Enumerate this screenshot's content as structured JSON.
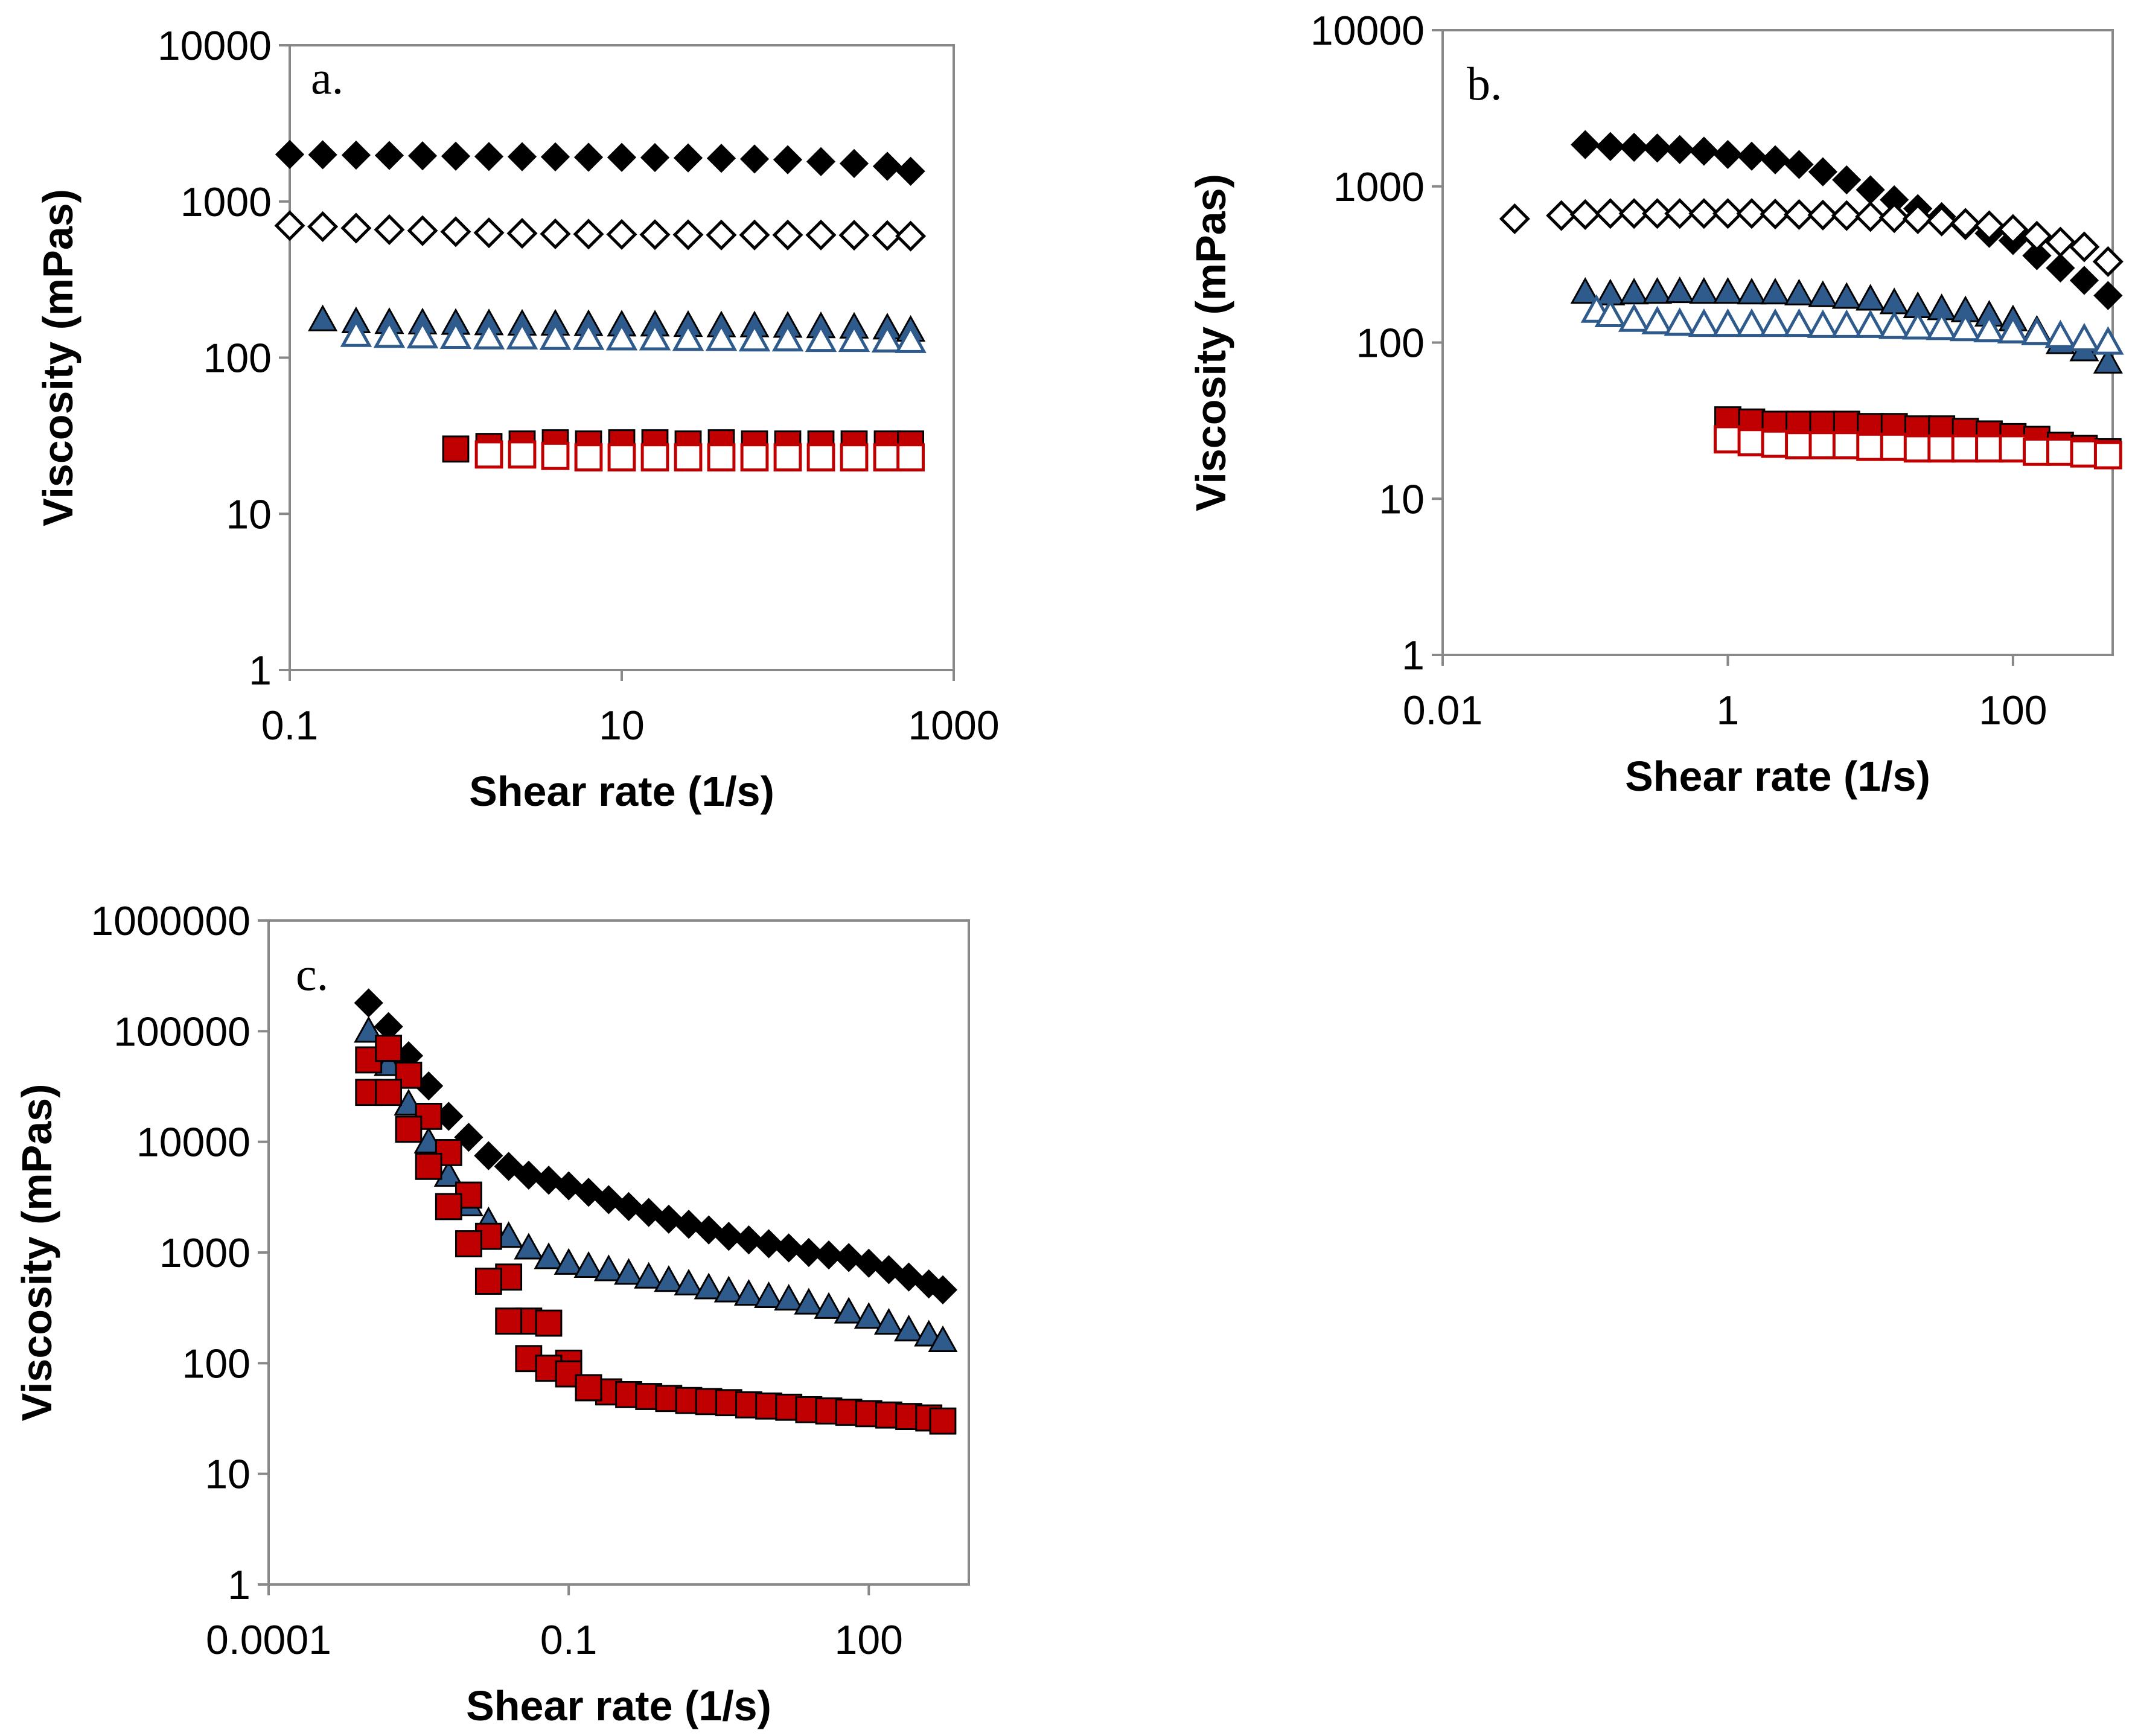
{
  "colors": {
    "black": "#000000",
    "blue": "#2e5a8c",
    "red": "#c00000",
    "axis": "#888888"
  },
  "chart_data": [
    {
      "type": "scatter",
      "panel_label": "a.",
      "xlabel": "Shear rate (1/s)",
      "ylabel": "Viscosity (mPas)",
      "xscale": "log",
      "yscale": "log",
      "xlim": [
        0.1,
        1000
      ],
      "ylim": [
        1,
        10000
      ],
      "xticks": [
        "0.1",
        "10",
        "1000"
      ],
      "yticks": [
        "1",
        "10",
        "100",
        "1000",
        "10000"
      ],
      "series": [
        {
          "marker": "diamond",
          "fill": "filled",
          "color": "#000000",
          "x": [
            0.1,
            0.158,
            0.251,
            0.398,
            0.631,
            1,
            1.585,
            2.512,
            3.981,
            6.31,
            10,
            15.85,
            25.12,
            39.81,
            63.1,
            100,
            158.5,
            251.2,
            398.1,
            550
          ],
          "y": [
            2000,
            1990,
            1980,
            1970,
            1960,
            1950,
            1940,
            1935,
            1930,
            1920,
            1915,
            1910,
            1900,
            1890,
            1870,
            1850,
            1800,
            1750,
            1680,
            1560
          ]
        },
        {
          "marker": "diamond",
          "fill": "open",
          "color": "#000000",
          "x": [
            0.1,
            0.158,
            0.251,
            0.398,
            0.631,
            1,
            1.585,
            2.512,
            3.981,
            6.31,
            10,
            15.85,
            25.12,
            39.81,
            63.1,
            100,
            158.5,
            251.2,
            398.1,
            550
          ],
          "y": [
            700,
            690,
            675,
            660,
            650,
            640,
            630,
            625,
            620,
            618,
            615,
            613,
            612,
            610,
            610,
            610,
            610,
            608,
            605,
            600
          ]
        },
        {
          "marker": "triangle",
          "fill": "filled",
          "color": "#2e5a8c",
          "x": [
            0.158,
            0.251,
            0.398,
            0.631,
            1,
            1.585,
            2.512,
            3.981,
            6.31,
            10,
            15.85,
            25.12,
            39.81,
            63.1,
            100,
            158.5,
            251.2,
            398.1,
            550
          ],
          "y": [
            175,
            170,
            168,
            167,
            166,
            165,
            164,
            164,
            163,
            162,
            162,
            161,
            160,
            160,
            159,
            158,
            157,
            155,
            150
          ]
        },
        {
          "marker": "triangle",
          "fill": "open",
          "color": "#2e5a8c",
          "x": [
            0.251,
            0.398,
            0.631,
            1,
            1.585,
            2.512,
            3.981,
            6.31,
            10,
            15.85,
            25.12,
            39.81,
            63.1,
            100,
            158.5,
            251.2,
            398.1,
            550
          ],
          "y": [
            140,
            138,
            137,
            136,
            135,
            135,
            134,
            134,
            133,
            133,
            132,
            132,
            131,
            131,
            130,
            130,
            129,
            128
          ]
        },
        {
          "marker": "square",
          "fill": "filled",
          "color": "#c00000",
          "x": [
            1,
            1.585,
            2.512,
            3.981,
            6.31,
            10,
            15.85,
            25.12,
            39.81,
            63.1,
            100,
            158.5,
            251.2,
            398.1,
            550
          ],
          "y": [
            26,
            27,
            28,
            28.5,
            28,
            28.5,
            28.5,
            28,
            28.5,
            28,
            28,
            28,
            28,
            28,
            28
          ]
        },
        {
          "marker": "square",
          "fill": "open",
          "color": "#c00000",
          "x": [
            1.585,
            2.512,
            3.981,
            6.31,
            10,
            15.85,
            25.12,
            39.81,
            63.1,
            100,
            158.5,
            251.2,
            398.1,
            550
          ],
          "y": [
            24,
            24,
            23.5,
            23,
            23,
            23,
            23,
            23,
            23,
            23,
            23,
            23,
            23,
            23
          ]
        }
      ]
    },
    {
      "type": "scatter",
      "panel_label": "b.",
      "xlabel": "Shear rate (1/s)",
      "ylabel": "Viscosity (mPas)",
      "xscale": "log",
      "yscale": "log",
      "xlim": [
        0.01,
        500
      ],
      "ylim": [
        1,
        10000
      ],
      "xticks": [
        "0.01",
        "1",
        "100"
      ],
      "yticks": [
        "1",
        "10",
        "100",
        "1000",
        "10000"
      ],
      "series": [
        {
          "marker": "diamond",
          "fill": "filled",
          "color": "#000000",
          "x": [
            0.1,
            0.15,
            0.22,
            0.32,
            0.46,
            0.68,
            1,
            1.47,
            2.15,
            3.16,
            4.64,
            6.81,
            10,
            14.7,
            21.5,
            31.6,
            46.4,
            68.1,
            100,
            147,
            215,
            316,
            464
          ],
          "y": [
            1850,
            1800,
            1780,
            1760,
            1720,
            1680,
            1600,
            1560,
            1480,
            1380,
            1240,
            1100,
            950,
            820,
            720,
            640,
            560,
            500,
            450,
            360,
            300,
            250,
            200
          ]
        },
        {
          "marker": "diamond",
          "fill": "open",
          "color": "#000000",
          "x": [
            0.032,
            0.068,
            0.1,
            0.15,
            0.22,
            0.32,
            0.46,
            0.68,
            1,
            1.47,
            2.15,
            3.16,
            4.64,
            6.81,
            10,
            14.7,
            21.5,
            31.6,
            46.4,
            68.1,
            100,
            147,
            215,
            316,
            464
          ],
          "y": [
            620,
            650,
            660,
            670,
            670,
            670,
            670,
            670,
            670,
            670,
            665,
            660,
            655,
            650,
            640,
            630,
            620,
            600,
            580,
            560,
            530,
            480,
            440,
            410,
            330
          ]
        },
        {
          "marker": "triangle",
          "fill": "filled",
          "color": "#2e5a8c",
          "x": [
            0.1,
            0.15,
            0.22,
            0.32,
            0.46,
            0.68,
            1,
            1.47,
            2.15,
            3.16,
            4.64,
            6.81,
            10,
            14.7,
            21.5,
            31.6,
            46.4,
            68.1,
            100,
            147,
            215,
            316,
            464
          ],
          "y": [
            210,
            205,
            208,
            210,
            212,
            210,
            210,
            208,
            208,
            205,
            200,
            195,
            190,
            180,
            170,
            165,
            160,
            150,
            140,
            120,
            100,
            90,
            75
          ]
        },
        {
          "marker": "triangle",
          "fill": "open",
          "color": "#2e5a8c",
          "x": [
            0.12,
            0.15,
            0.22,
            0.32,
            0.46,
            0.68,
            1,
            1.47,
            2.15,
            3.16,
            4.64,
            6.81,
            10,
            14.7,
            21.5,
            31.6,
            46.4,
            68.1,
            100,
            147,
            215,
            316,
            464
          ],
          "y": [
            160,
            150,
            140,
            135,
            132,
            130,
            130,
            130,
            130,
            130,
            128,
            128,
            128,
            126,
            125,
            124,
            122,
            120,
            118,
            115,
            110,
            105,
            100
          ]
        },
        {
          "marker": "square",
          "fill": "filled",
          "color": "#c00000",
          "x": [
            1,
            1.47,
            2.15,
            3.16,
            4.64,
            6.81,
            10,
            14.7,
            21.5,
            31.6,
            46.4,
            68.1,
            100,
            147,
            215,
            316,
            464
          ],
          "y": [
            32,
            31,
            30,
            30,
            30,
            30,
            29,
            29,
            28,
            28,
            27,
            26,
            25,
            24,
            22,
            21,
            20
          ]
        },
        {
          "marker": "square",
          "fill": "open",
          "color": "#c00000",
          "x": [
            1,
            1.47,
            2.15,
            3.16,
            4.64,
            6.81,
            10,
            14.7,
            21.5,
            31.6,
            46.4,
            68.1,
            100,
            147,
            215,
            316,
            464
          ],
          "y": [
            24,
            23,
            22.5,
            22,
            22,
            22,
            21.5,
            21.5,
            21,
            21,
            21,
            21,
            21,
            20,
            20,
            19.5,
            19
          ]
        }
      ]
    },
    {
      "type": "scatter",
      "panel_label": "c.",
      "xlabel": "Shear rate (1/s)",
      "ylabel": "Viscosity (mPas)",
      "xscale": "log",
      "yscale": "log",
      "xlim": [
        0.0001,
        1000
      ],
      "ylim": [
        1,
        1000000
      ],
      "xticks": [
        "0.0001",
        "0.1",
        "100"
      ],
      "yticks": [
        "1",
        "10",
        "100",
        "1000",
        "10000",
        "100000",
        "1000000"
      ],
      "series": [
        {
          "marker": "diamond",
          "fill": "filled",
          "color": "#000000",
          "x": [
            0.001,
            0.00158,
            0.00251,
            0.00398,
            0.00631,
            0.01,
            0.0158,
            0.0251,
            0.0398,
            0.0631,
            0.1,
            0.158,
            0.251,
            0.398,
            0.631,
            1,
            1.585,
            2.512,
            3.981,
            6.31,
            10,
            15.85,
            25.12,
            39.81,
            63.1,
            100,
            158.5,
            251.2,
            398.1,
            550
          ],
          "y": [
            180000,
            110000,
            60000,
            32000,
            17000,
            11000,
            7500,
            6000,
            5000,
            4500,
            4000,
            3500,
            3000,
            2600,
            2300,
            2000,
            1800,
            1600,
            1400,
            1300,
            1200,
            1100,
            1000,
            950,
            900,
            800,
            700,
            600,
            520,
            460
          ]
        },
        {
          "marker": "triangle",
          "fill": "filled",
          "color": "#2e5a8c",
          "x": [
            0.001,
            0.00158,
            0.00251,
            0.00398,
            0.00631,
            0.01,
            0.0158,
            0.0251,
            0.0398,
            0.0631,
            0.1,
            0.158,
            0.251,
            0.398,
            0.631,
            1,
            1.585,
            2.512,
            3.981,
            6.31,
            10,
            15.85,
            25.12,
            39.81,
            63.1,
            100,
            158.5,
            251.2,
            398.1,
            550
          ],
          "y": [
            100000,
            50000,
            22000,
            10000,
            5000,
            2700,
            1900,
            1400,
            1100,
            900,
            800,
            750,
            700,
            650,
            600,
            560,
            520,
            480,
            450,
            420,
            400,
            380,
            350,
            320,
            290,
            260,
            230,
            200,
            180,
            160
          ]
        },
        {
          "marker": "square",
          "fill": "filled",
          "color": "#c00000",
          "x": [
            0.001,
            0.00158,
            0.00251,
            0.00398,
            0.00631,
            0.01,
            0.0158,
            0.0251,
            0.0398,
            0.0631,
            0.1,
            0.158,
            0.251,
            0.398,
            0.631,
            1,
            1.585,
            2.512,
            3.981,
            6.31,
            10,
            15.85,
            25.12,
            39.81,
            63.1,
            100,
            158.5,
            251.2,
            398.1,
            550
          ],
          "y": [
            55000,
            70000,
            40000,
            17000,
            8000,
            3300,
            1400,
            600,
            240,
            230,
            100,
            60,
            55,
            52,
            50,
            48,
            46,
            45,
            44,
            42,
            41,
            40,
            38,
            37,
            36,
            35,
            34,
            33,
            32,
            30
          ]
        },
        {
          "marker": "square",
          "fill": "filled",
          "color": "#c00000",
          "x": [
            0.001,
            0.00158,
            0.00251,
            0.00398,
            0.00631,
            0.01,
            0.0158,
            0.0251,
            0.0398,
            0.0631,
            0.1,
            0.158
          ],
          "y": [
            28000,
            28000,
            13000,
            6000,
            2600,
            1200,
            550,
            240,
            110,
            90,
            80,
            60
          ]
        }
      ]
    }
  ]
}
